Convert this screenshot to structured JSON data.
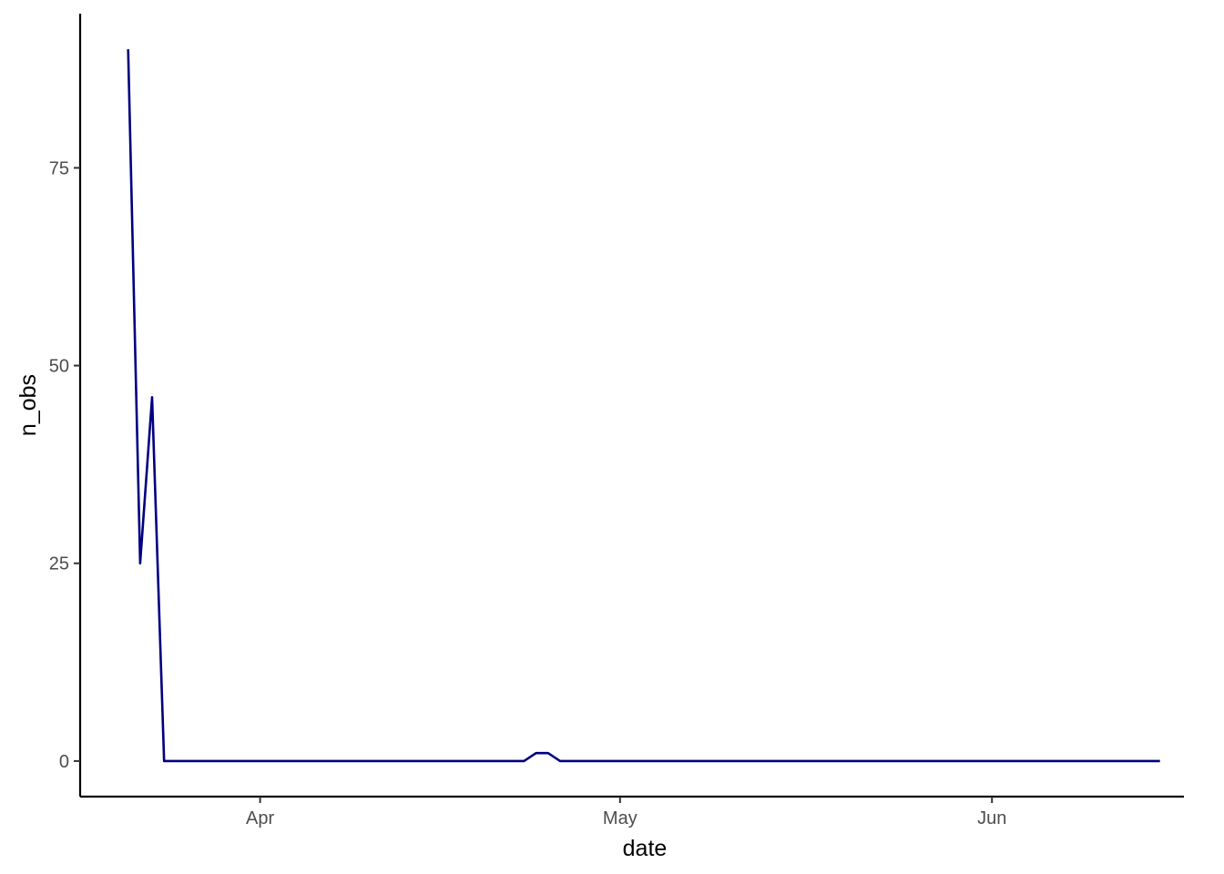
{
  "chart_data": {
    "type": "line",
    "title": "",
    "xlabel": "date",
    "ylabel": "n_obs",
    "x_type": "date",
    "xlim": [
      "2020-03-17",
      "2020-06-17"
    ],
    "ylim": [
      -4.5,
      94.5
    ],
    "x_ticks": [
      {
        "value": "2020-04-01",
        "label": "Apr"
      },
      {
        "value": "2020-05-01",
        "label": "May"
      },
      {
        "value": "2020-06-01",
        "label": "Jun"
      }
    ],
    "y_ticks": [
      {
        "value": 0,
        "label": "0"
      },
      {
        "value": 25,
        "label": "25"
      },
      {
        "value": 50,
        "label": "50"
      },
      {
        "value": 75,
        "label": "75"
      }
    ],
    "grid": false,
    "series": [
      {
        "color": "#000080",
        "points": [
          {
            "x": "2020-03-21",
            "y": 90
          },
          {
            "x": "2020-03-22",
            "y": 25
          },
          {
            "x": "2020-03-23",
            "y": 46
          },
          {
            "x": "2020-03-24",
            "y": 0
          },
          {
            "x": "2020-04-23",
            "y": 0
          },
          {
            "x": "2020-04-24",
            "y": 1
          },
          {
            "x": "2020-04-25",
            "y": 1
          },
          {
            "x": "2020-04-26",
            "y": 0
          },
          {
            "x": "2020-06-15",
            "y": 0
          }
        ]
      }
    ]
  }
}
